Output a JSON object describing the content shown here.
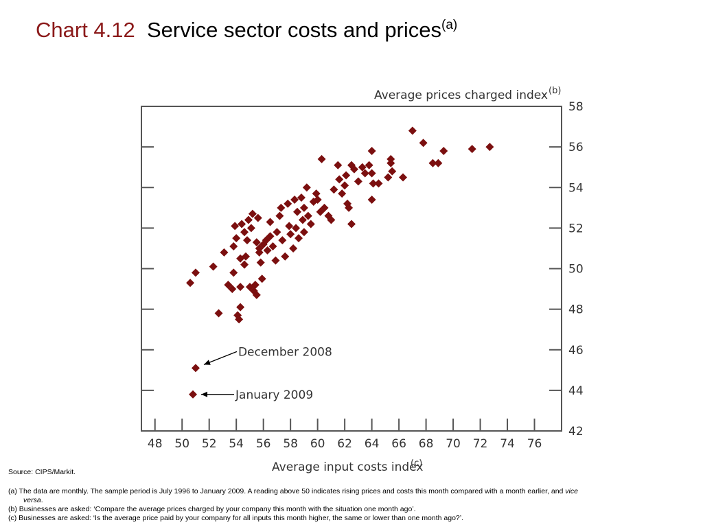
{
  "title": {
    "prefix": "Chart 4.12",
    "main": "Service sector costs and prices",
    "note": "(a)"
  },
  "chart_data": {
    "type": "scatter",
    "xlabel": "Average input costs index",
    "xlabel_note": "(c)",
    "ylabel": "Average prices charged index",
    "ylabel_note": "(b)",
    "xlim": [
      47,
      78
    ],
    "ylim": [
      42,
      58
    ],
    "x_ticks": [
      48,
      50,
      52,
      54,
      56,
      58,
      60,
      62,
      64,
      66,
      68,
      70,
      72,
      74,
      76
    ],
    "y_ticks": [
      42,
      44,
      46,
      48,
      50,
      52,
      54,
      56,
      58
    ],
    "y_axis_side": "right",
    "grid": false,
    "marker_color": "#7b0f0f",
    "points": [
      [
        50.6,
        49.3
      ],
      [
        51.0,
        49.8
      ],
      [
        52.3,
        50.1
      ],
      [
        52.7,
        47.8
      ],
      [
        53.1,
        50.8
      ],
      [
        53.4,
        49.2
      ],
      [
        53.7,
        49.0
      ],
      [
        53.8,
        49.8
      ],
      [
        53.8,
        51.1
      ],
      [
        54.0,
        51.5
      ],
      [
        53.9,
        52.1
      ],
      [
        54.1,
        47.7
      ],
      [
        54.2,
        47.5
      ],
      [
        54.3,
        48.1
      ],
      [
        54.3,
        49.1
      ],
      [
        54.3,
        50.5
      ],
      [
        54.4,
        52.2
      ],
      [
        54.6,
        51.8
      ],
      [
        54.6,
        50.2
      ],
      [
        54.7,
        50.6
      ],
      [
        54.8,
        51.4
      ],
      [
        54.9,
        52.4
      ],
      [
        55.1,
        52.0
      ],
      [
        55.2,
        52.7
      ],
      [
        55.0,
        49.1
      ],
      [
        55.3,
        48.9
      ],
      [
        55.4,
        49.2
      ],
      [
        55.5,
        48.7
      ],
      [
        55.5,
        51.3
      ],
      [
        55.6,
        52.5
      ],
      [
        55.7,
        51.0
      ],
      [
        55.7,
        50.8
      ],
      [
        55.8,
        50.3
      ],
      [
        55.9,
        49.5
      ],
      [
        56.0,
        51.2
      ],
      [
        56.2,
        51.4
      ],
      [
        56.3,
        50.9
      ],
      [
        56.5,
        51.6
      ],
      [
        56.5,
        52.3
      ],
      [
        56.7,
        51.1
      ],
      [
        56.9,
        50.4
      ],
      [
        57.0,
        51.8
      ],
      [
        57.2,
        52.6
      ],
      [
        57.3,
        53.0
      ],
      [
        57.4,
        51.4
      ],
      [
        57.6,
        50.6
      ],
      [
        57.8,
        53.2
      ],
      [
        57.9,
        52.1
      ],
      [
        58.0,
        51.7
      ],
      [
        58.2,
        51.0
      ],
      [
        58.3,
        53.4
      ],
      [
        58.4,
        52.0
      ],
      [
        58.5,
        52.8
      ],
      [
        58.6,
        51.5
      ],
      [
        58.8,
        53.5
      ],
      [
        58.9,
        52.4
      ],
      [
        59.0,
        51.8
      ],
      [
        59.0,
        53.0
      ],
      [
        59.2,
        54.0
      ],
      [
        59.3,
        52.6
      ],
      [
        59.5,
        52.2
      ],
      [
        59.7,
        53.3
      ],
      [
        59.9,
        53.7
      ],
      [
        60.0,
        53.4
      ],
      [
        60.2,
        52.8
      ],
      [
        60.3,
        55.4
      ],
      [
        60.5,
        53.0
      ],
      [
        60.8,
        52.6
      ],
      [
        61.0,
        52.4
      ],
      [
        61.2,
        53.9
      ],
      [
        61.5,
        55.1
      ],
      [
        61.6,
        54.4
      ],
      [
        61.8,
        53.7
      ],
      [
        62.0,
        54.1
      ],
      [
        62.1,
        54.6
      ],
      [
        62.2,
        53.2
      ],
      [
        62.3,
        53.0
      ],
      [
        62.5,
        52.2
      ],
      [
        62.5,
        55.1
      ],
      [
        62.7,
        54.9
      ],
      [
        63.0,
        54.3
      ],
      [
        63.3,
        55.0
      ],
      [
        63.5,
        54.7
      ],
      [
        63.8,
        55.1
      ],
      [
        64.1,
        54.2
      ],
      [
        64.0,
        55.8
      ],
      [
        64.0,
        53.4
      ],
      [
        64.0,
        54.7
      ],
      [
        64.5,
        54.2
      ],
      [
        65.4,
        55.2
      ],
      [
        65.4,
        55.4
      ],
      [
        65.5,
        54.8
      ],
      [
        65.2,
        54.5
      ],
      [
        66.3,
        54.5
      ],
      [
        67.0,
        56.8
      ],
      [
        67.8,
        56.2
      ],
      [
        68.5,
        55.2
      ],
      [
        68.9,
        55.2
      ],
      [
        69.3,
        55.8
      ],
      [
        71.4,
        55.9
      ],
      [
        72.7,
        56.0
      ],
      [
        51.0,
        45.1
      ],
      [
        50.8,
        43.8
      ]
    ],
    "annotations": [
      {
        "text": "December 2008",
        "x": 51.0,
        "y": 45.1
      },
      {
        "text": "January 2009",
        "x": 50.8,
        "y": 43.8
      }
    ]
  },
  "footnotes": {
    "source": "Source:  CIPS/Markit.",
    "a_line1": "(a)  The data are monthly.  The sample period is July 1996 to January 2009.  A reading above 50 indicates rising prices and costs this month compared with a month earlier, and ",
    "a_vice": "vice",
    "a_versa": "versa",
    "a_end": ".",
    "b": "(b)  Businesses are asked:  ‘Compare the average prices charged by your company this month with the situation one month ago’.",
    "c": "(c)  Businesses are asked:  ‘Is the average price paid by your company for all inputs this month higher, the same or lower than one month ago?’."
  }
}
